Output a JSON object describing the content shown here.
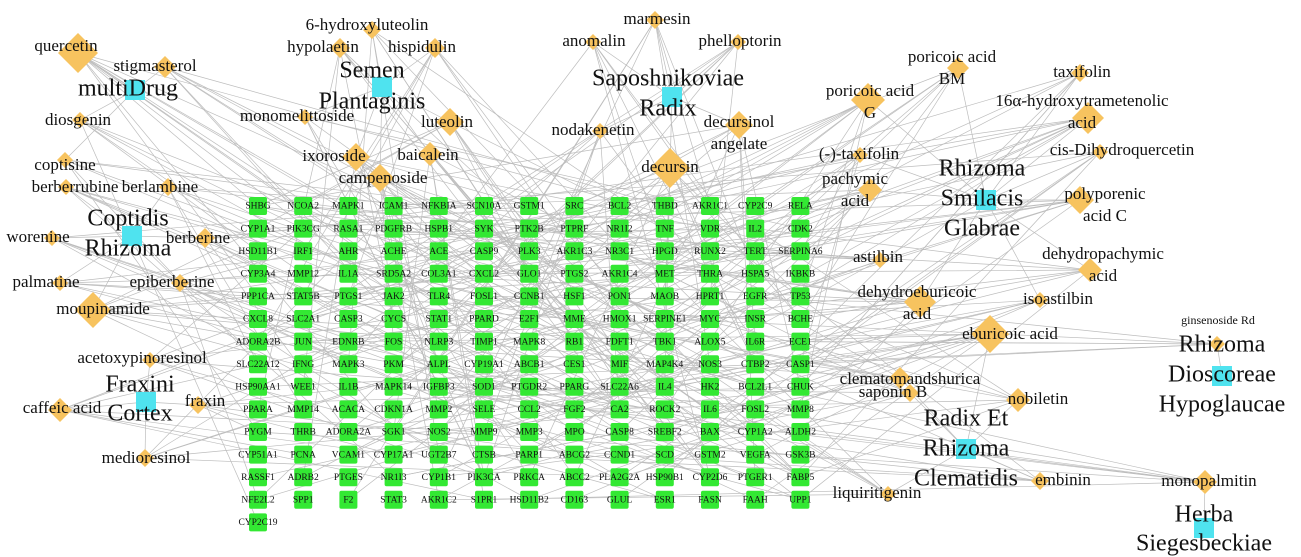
{
  "drugs": [
    {
      "lines": [
        "multiDrug"
      ]
    },
    {
      "lines": [
        "Semen",
        "Plantaginis"
      ]
    },
    {
      "lines": [
        "Saposhnikoviae",
        "Radix"
      ]
    },
    {
      "lines": [
        "Coptidis",
        "Rhizoma"
      ]
    },
    {
      "lines": [
        "Fraxini",
        "Cortex"
      ]
    },
    {
      "lines": [
        "Rhizoma",
        "Smilacis",
        "Glabrae"
      ]
    },
    {
      "lines": [
        "Rhizoma",
        "Dioscoreae",
        "Hypoglaucae"
      ]
    },
    {
      "lines": [
        "Radix Et",
        "Rhizoma",
        "Clematidis"
      ]
    },
    {
      "lines": [
        "Herba",
        "Siegesbeckiae"
      ]
    }
  ],
  "ingredients": [
    {
      "lines": [
        "quercetin"
      ]
    },
    {
      "lines": [
        "stigmasterol"
      ]
    },
    {
      "lines": [
        "6-hydroxyluteolin"
      ]
    },
    {
      "lines": [
        "hypolaetin"
      ]
    },
    {
      "lines": [
        "hispidulin"
      ]
    },
    {
      "lines": [
        "marmesin"
      ]
    },
    {
      "lines": [
        "anomalin"
      ]
    },
    {
      "lines": [
        "phelloptorin"
      ]
    },
    {
      "lines": [
        "poricoic acid",
        "BM"
      ]
    },
    {
      "lines": [
        "taxifolin"
      ]
    },
    {
      "lines": [
        "poricoic acid",
        "G"
      ]
    },
    {
      "lines": [
        "16α-hydroxytrametenolic",
        "acid"
      ]
    },
    {
      "lines": [
        "diosgenin"
      ]
    },
    {
      "lines": [
        "monomelittoside"
      ]
    },
    {
      "lines": [
        "luteolin"
      ]
    },
    {
      "lines": [
        "nodakenetin"
      ]
    },
    {
      "lines": [
        "decursinol",
        "angelate"
      ]
    },
    {
      "lines": [
        "cis-Dihydroquercetin"
      ]
    },
    {
      "lines": [
        "(-)-taxifolin"
      ]
    },
    {
      "lines": [
        "coptisine"
      ]
    },
    {
      "lines": [
        "ixoroside"
      ]
    },
    {
      "lines": [
        "baicalein"
      ]
    },
    {
      "lines": [
        "decursin"
      ]
    },
    {
      "lines": [
        "berberrubine"
      ]
    },
    {
      "lines": [
        "berlambine"
      ]
    },
    {
      "lines": [
        "campenoside"
      ]
    },
    {
      "lines": [
        "pachymic",
        "acid"
      ]
    },
    {
      "lines": [
        "polyporenic",
        "acid C"
      ]
    },
    {
      "lines": [
        "worenine"
      ]
    },
    {
      "lines": [
        "berberine"
      ]
    },
    {
      "lines": [
        "astilbin"
      ]
    },
    {
      "lines": [
        "dehydropachymic",
        "acid"
      ]
    },
    {
      "lines": [
        "palmatine"
      ]
    },
    {
      "lines": [
        "epiberberine"
      ]
    },
    {
      "lines": [
        "moupinamide"
      ]
    },
    {
      "lines": [
        "dehydroeburicoic",
        "acid"
      ]
    },
    {
      "lines": [
        "isoastilbin"
      ]
    },
    {
      "lines": [
        "ginsenoside Rd"
      ]
    },
    {
      "lines": [
        "eburicoic acid"
      ]
    },
    {
      "lines": [
        "acetoxypinoresinol"
      ]
    },
    {
      "lines": [
        "caffeic acid"
      ]
    },
    {
      "lines": [
        "fraxin"
      ]
    },
    {
      "lines": [
        "clematomandshurica"
      ]
    },
    {
      "lines": [
        "saponin B"
      ]
    },
    {
      "lines": [
        "nobiletin"
      ]
    },
    {
      "lines": [
        "medioresinol"
      ]
    },
    {
      "lines": [
        "liquiritigenin"
      ]
    },
    {
      "lines": [
        "embinin"
      ]
    },
    {
      "lines": [
        "monopalmitin"
      ]
    }
  ],
  "targets": [
    "SHBG",
    "NCOA2",
    "MAPK1",
    "ICAM1",
    "NFKBIA",
    "SCN10A",
    "GSTM1",
    "SRC",
    "BCL2",
    "THBD",
    "AKR1C1",
    "CYP2C9",
    "RELA",
    "CYP1A1",
    "PIK3CG",
    "RASA1",
    "PDGFRB",
    "HSPB1",
    "SYK",
    "PTK2B",
    "PTPRF",
    "NR1I2",
    "TNF",
    "VDR",
    "IL2",
    "CDK2",
    "HSD11B1",
    "IRF1",
    "AHR",
    "ACHE",
    "ACE",
    "CASP9",
    "PLK3",
    "AKR1C3",
    "NR3C1",
    "HPGD",
    "RUNX2",
    "TERT",
    "SERPINA6",
    "CYP3A4",
    "MMP12",
    "IL1A",
    "SRD5A2",
    "COL3A1",
    "CXCL2",
    "GLO1",
    "PTGS2",
    "AKR1C4",
    "MET",
    "THRA",
    "HSPA5",
    "IKBKB",
    "PPP1CA",
    "STAT5B",
    "PTGS1",
    "JAK2",
    "TLR4",
    "FOSL1",
    "CCNB1",
    "HSF1",
    "PON1",
    "MAOB",
    "HPRT1",
    "EGFR",
    "TP53",
    "CXCL8",
    "SLC2A1",
    "CASP3",
    "CYCS",
    "STAT1",
    "PPARD",
    "E2F1",
    "MME",
    "HMOX1",
    "SERPINE1",
    "MYC",
    "INSR",
    "BCHE",
    "ADORA2B",
    "JUN",
    "EDNRB",
    "FOS",
    "NLRP3",
    "TIMP1",
    "MAPK8",
    "RB1",
    "FDFT1",
    "TBK1",
    "ALOX5",
    "IL6R",
    "ECE1",
    "SLC22A12",
    "IFNG",
    "MAPK3",
    "PKM",
    "ALPL",
    "CYP19A1",
    "ABCB1",
    "CES1",
    "MIF",
    "MAP4K4",
    "NOS3",
    "CTBP2",
    "CASP1",
    "HSP90AA1",
    "WEE1",
    "IL1B",
    "MAPK14",
    "IGFBP3",
    "SOD1",
    "PTGDR2",
    "PPARG",
    "SLC22A6",
    "IL4",
    "HK2",
    "BCL2L1",
    "CHUK",
    "PPARA",
    "MMP14",
    "ACACA",
    "CDKN1A",
    "MMP2",
    "SELE",
    "CCL2",
    "FGF2",
    "CA2",
    "ROCK2",
    "IL6",
    "FOSL2",
    "MMP8",
    "PYGM",
    "THRB",
    "ADORA2A",
    "SGK1",
    "NOS2",
    "MMP9",
    "MMP3",
    "MPO",
    "CASP8",
    "SREBF2",
    "BAX",
    "CYP1A2",
    "ALDH2",
    "CYP51A1",
    "PCNA",
    "VCAM1",
    "CYP17A1",
    "UGT2B7",
    "CTSB",
    "PARP1",
    "ABCG2",
    "CCND1",
    "SCD",
    "GSTM2",
    "VEGFA",
    "GSK3B",
    "RASSF1",
    "ADRB2",
    "PTGES",
    "NR1I3",
    "CYP1B1",
    "PIK3CA",
    "PRKCA",
    "ABCC2",
    "PLA2G2A",
    "HSP90B1",
    "CYP2D6",
    "PTGER1",
    "FABP5",
    "NFE2L2",
    "SPP1",
    "F2",
    "STAT3",
    "AKR1C2",
    "S1PR1",
    "HSD11B2",
    "CD163",
    "GLUL",
    "ESR1",
    "FASN",
    "FAAH",
    "UPP1",
    "CYP2C19"
  ]
}
